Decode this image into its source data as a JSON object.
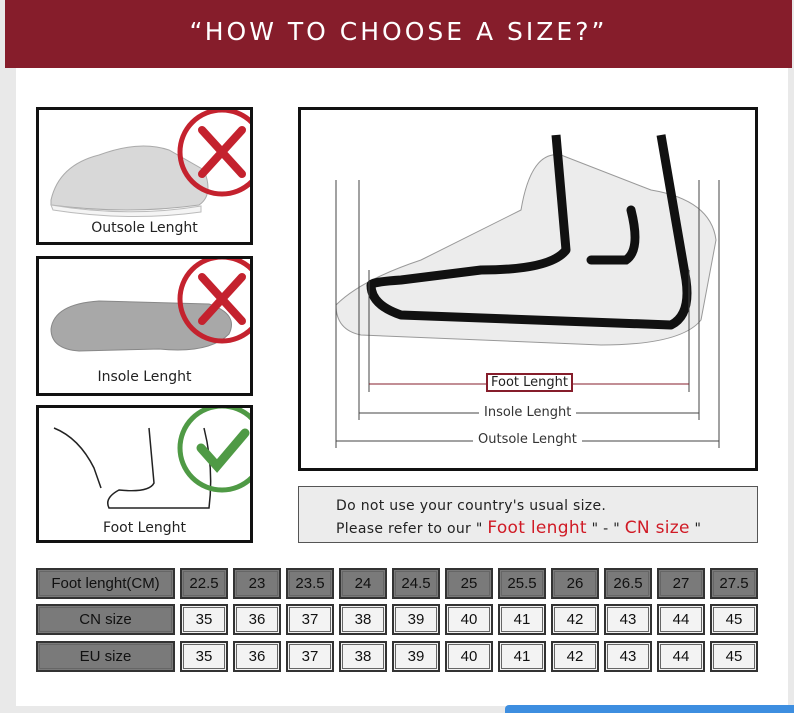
{
  "header": {
    "title": "“HOW TO CHOOSE A SIZE?”"
  },
  "panels": [
    {
      "caption": "Outsole Lenght",
      "verdict": "x-mark",
      "verdict_color": "#c4222e"
    },
    {
      "caption": "Insole Lenght",
      "verdict": "x-mark",
      "verdict_color": "#c4222e"
    },
    {
      "caption": "Foot Lenght",
      "verdict": "check-mark",
      "verdict_color": "#4f9a45"
    }
  ],
  "diagram": {
    "foot_label": "Foot Lenght",
    "insole_label": "Insole Lenght",
    "outsole_label": "Outsole Lenght"
  },
  "note": {
    "line1": "Do not use your country's usual size.",
    "line2_prefix": "Please refer to our \" ",
    "highlight1": "Foot lenght",
    "sep": " \" - \" ",
    "highlight2": "CN size",
    "suffix": " \""
  },
  "table": {
    "rows": [
      {
        "label": "Foot lenght(CM)",
        "values": [
          "22.5",
          "23",
          "23.5",
          "24",
          "24.5",
          "25",
          "25.5",
          "26",
          "26.5",
          "27",
          "27.5"
        ]
      },
      {
        "label": "CN size",
        "values": [
          "35",
          "36",
          "37",
          "38",
          "39",
          "40",
          "41",
          "42",
          "43",
          "44",
          "45"
        ]
      },
      {
        "label": "EU size",
        "values": [
          "35",
          "36",
          "37",
          "38",
          "39",
          "40",
          "41",
          "42",
          "43",
          "44",
          "45"
        ]
      }
    ]
  }
}
